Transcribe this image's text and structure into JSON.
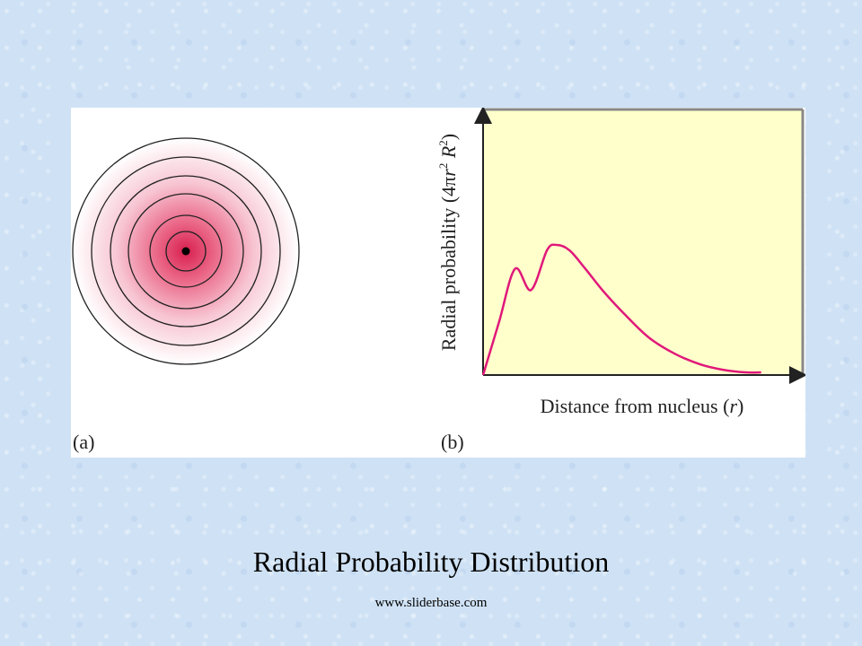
{
  "slide": {
    "title": "Radial Probability Distribution",
    "footer": "www.sliderbase.com"
  },
  "figure": {
    "panel_a_label": "(a)",
    "panel_b_label": "(b)",
    "ring_count": 6,
    "colors": {
      "center": "#d8204f",
      "outer": "#ffffff",
      "rings": "#222222",
      "plot_bg": "#ffffcc",
      "curve": "#e0187a"
    }
  },
  "chart_data": {
    "type": "line",
    "xlabel_prefix": "Distance from nucleus (",
    "xlabel_var": "r",
    "xlabel_suffix": ")",
    "ylabel_prefix": "Radial probability (4",
    "ylabel_pi": "π",
    "ylabel_r": "r",
    "ylabel_exp1": "2",
    "ylabel_R": "R",
    "ylabel_exp2": "2",
    "ylabel_suffix": ")",
    "ylim": [
      0,
      1
    ],
    "xlim": [
      0,
      1
    ],
    "grid": false,
    "series": [
      {
        "x": [
          0.0,
          0.05,
          0.1,
          0.15,
          0.2,
          0.23,
          0.27,
          0.32,
          0.38,
          0.45,
          0.52,
          0.6,
          0.68,
          0.75,
          0.82,
          0.87
        ],
        "y": [
          0.0,
          0.2,
          0.4,
          0.32,
          0.47,
          0.49,
          0.47,
          0.4,
          0.31,
          0.22,
          0.14,
          0.08,
          0.04,
          0.02,
          0.01,
          0.01
        ]
      }
    ]
  }
}
